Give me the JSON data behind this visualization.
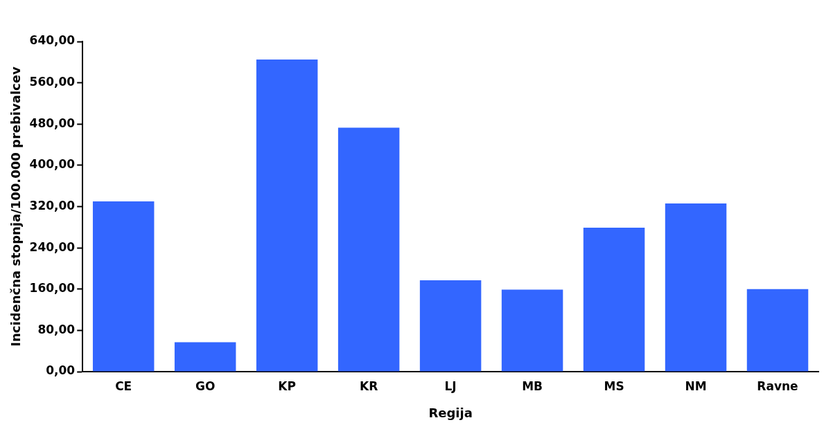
{
  "chart_data": {
    "type": "bar",
    "xlabel": "Regija",
    "ylabel": "Incidenčna stopnja/100.000 prebivalcev",
    "categories": [
      "CE",
      "GO",
      "KP",
      "KR",
      "LJ",
      "MB",
      "MS",
      "NM",
      "Ravne"
    ],
    "values": [
      330,
      57,
      605,
      473,
      177,
      159,
      279,
      326,
      160
    ],
    "color": "#3366ff",
    "ylim": [
      0,
      640
    ],
    "yticks": [
      {
        "value": 0,
        "label": "0,00"
      },
      {
        "value": 80,
        "label": "80,00"
      },
      {
        "value": 160,
        "label": "160,00"
      },
      {
        "value": 240,
        "label": "240,00"
      },
      {
        "value": 320,
        "label": "320,00"
      },
      {
        "value": 400,
        "label": "400,00"
      },
      {
        "value": 480,
        "label": "480,00"
      },
      {
        "value": 560,
        "label": "560,00"
      },
      {
        "value": 640,
        "label": "640,00"
      }
    ],
    "grid": false,
    "legend": false
  }
}
